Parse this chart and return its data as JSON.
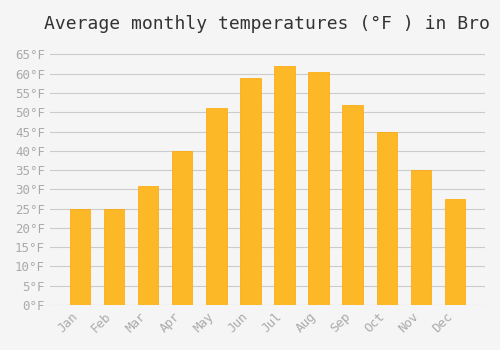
{
  "title": "Average monthly temperatures (°F ) in Bro",
  "months": [
    "Jan",
    "Feb",
    "Mar",
    "Apr",
    "May",
    "Jun",
    "Jul",
    "Aug",
    "Sep",
    "Oct",
    "Nov",
    "Dec"
  ],
  "values": [
    25,
    25,
    31,
    40,
    51,
    59,
    62,
    60.5,
    52,
    45,
    35,
    27.5
  ],
  "bar_color": "#FDB827",
  "bar_edge_color": "#FFA500",
  "background_color": "#F5F5F5",
  "grid_color": "#CCCCCC",
  "text_color": "#AAAAAA",
  "ylim": [
    0,
    68
  ],
  "yticks": [
    0,
    5,
    10,
    15,
    20,
    25,
    30,
    35,
    40,
    45,
    50,
    55,
    60,
    65
  ],
  "title_fontsize": 13,
  "tick_fontsize": 9
}
